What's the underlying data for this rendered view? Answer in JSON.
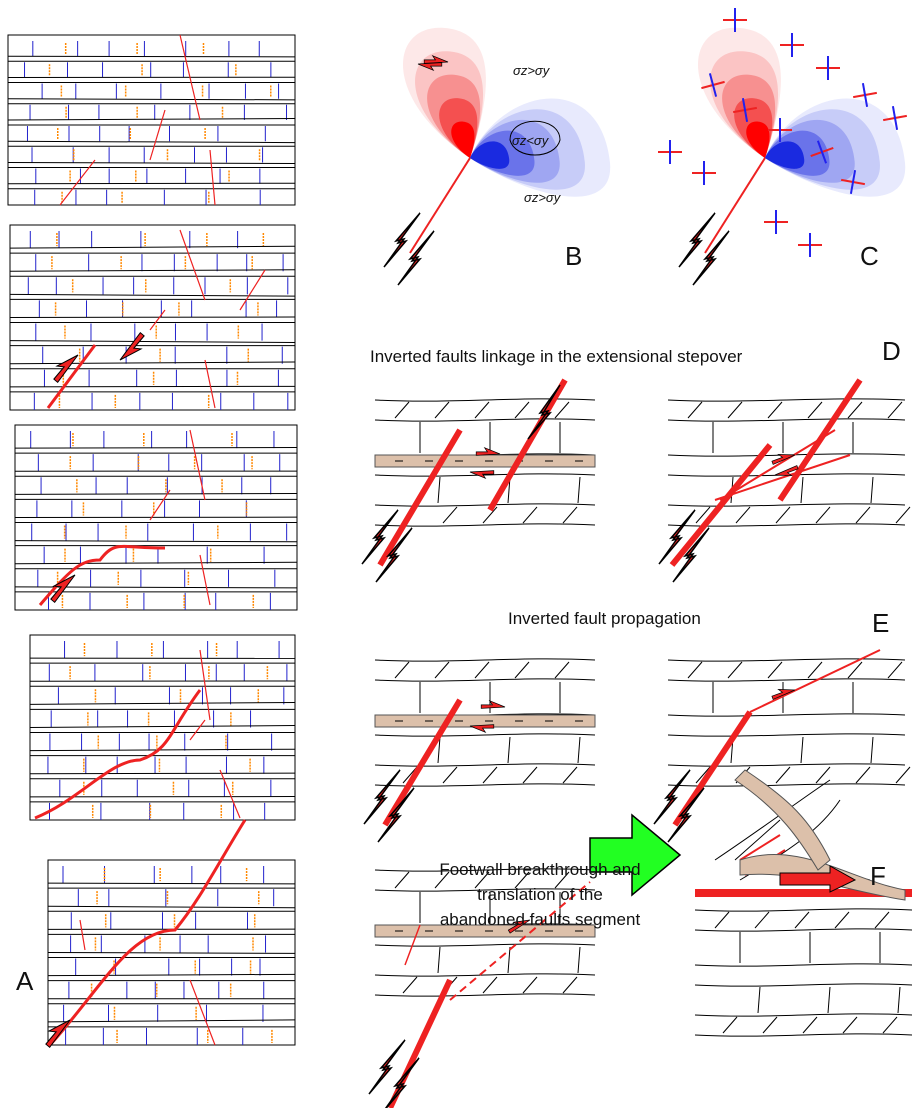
{
  "panels": {
    "a": {
      "label": "A"
    },
    "b": {
      "label": "B",
      "labels": [
        "σz>σy",
        "σz<σy",
        "σz>σy"
      ]
    },
    "c": {
      "label": "C"
    },
    "d": {
      "label": "D",
      "title": "Inverted faults linkage in the extensional stepover"
    },
    "e": {
      "label": "E",
      "title": "Inverted fault propagation"
    },
    "f": {
      "label": "F",
      "title_lines": [
        "Footwall breakthrough and",
        "translation of the",
        "abandoned faults segment"
      ]
    }
  }
}
